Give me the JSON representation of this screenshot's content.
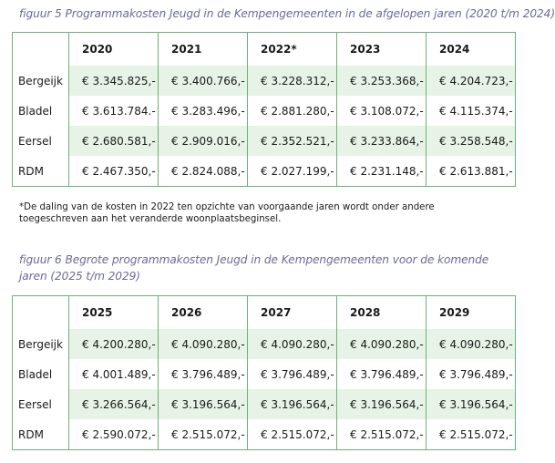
{
  "figure5": {
    "caption": "figuur 5 Programmakosten Jeugd in de Kempengemeenten in de afgelopen jaren (2020 t/m 2024)",
    "columns": [
      "2020",
      "2021",
      "2022*",
      "2023",
      "2024"
    ],
    "rows": [
      {
        "label": "Bergeijk",
        "values": [
          "€ 3.345.825,-",
          "€ 3.400.766,-",
          "€ 3.228.312,-",
          "€ 3.253.368,-",
          "€ 4.204.723,-"
        ]
      },
      {
        "label": "Bladel",
        "values": [
          "€ 3.613.784.-",
          "€ 3.283.496,-",
          "€ 2.881.280,-",
          "€ 3.108.072,-",
          "€ 4.115.374,-"
        ]
      },
      {
        "label": "Eersel",
        "values": [
          "€ 2.680.581,-",
          "€ 2.909.016,-",
          "€ 2.352.521,-",
          "€ 3.233.864,-",
          "€ 3.258.548,-"
        ]
      },
      {
        "label": "RDM",
        "values": [
          "€ 2.467.350,-",
          "€ 2.824.088,-",
          "€ 2.027.199,-",
          "€ 2.231.148,-",
          "€ 2.613.881,-"
        ]
      }
    ],
    "footnote": "*De daling van de kosten in 2022 ten opzichte van voorgaande jaren wordt onder andere toegeschreven aan het veranderde woonplaatsbeginsel."
  },
  "figure6": {
    "caption": "figuur 6 Begrote programmakosten Jeugd in de Kempengemeenten voor de komende jaren (2025 t/m 2029)",
    "columns": [
      "2025",
      "2026",
      "2027",
      "2028",
      "2029"
    ],
    "rows": [
      {
        "label": "Bergeijk",
        "values": [
          "€ 4.200.280,-",
          "€ 4.090.280,-",
          "€ 4.090.280,-",
          "€ 4.090.280,-",
          "€ 4.090.280,-"
        ]
      },
      {
        "label": "Bladel",
        "values": [
          "€ 4.001.489,-",
          "€ 3.796.489,-",
          "€ 3.796.489,-",
          "€ 3.796.489,-",
          "€ 3.796.489,-"
        ]
      },
      {
        "label": "Eersel",
        "values": [
          "€ 3.266.564,-",
          "€ 3.196.564,-",
          "€ 3.196.564,-",
          "€ 3.196.564,-",
          "€ 3.196.564,-"
        ]
      },
      {
        "label": "RDM",
        "values": [
          "€ 2.590.072,-",
          "€ 2.515.072,-",
          "€ 2.515.072,-",
          "€ 2.515.072,-",
          "€ 2.515.072,-"
        ]
      }
    ]
  },
  "colors": {
    "border": "#6bb27a",
    "row_shade": "#e6f3e6",
    "caption_text": "#6a6a9a"
  }
}
